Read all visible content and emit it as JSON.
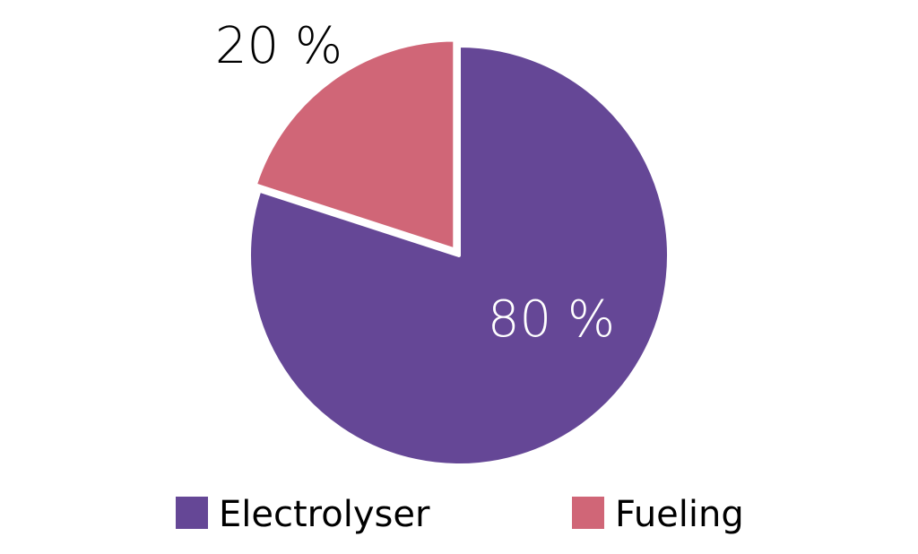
{
  "chart_data": {
    "type": "pie",
    "slices": [
      {
        "label": "Electrolyser",
        "value": 80,
        "display": "80 %",
        "color": "#654796",
        "label_color": "#ffffff"
      },
      {
        "label": "Fueling",
        "value": 20,
        "display": "20 %",
        "color": "#d06677",
        "label_color": "#000000"
      }
    ],
    "start_angle_deg": 0,
    "direction": "clockwise",
    "legend": {
      "placement": "bottom"
    }
  }
}
